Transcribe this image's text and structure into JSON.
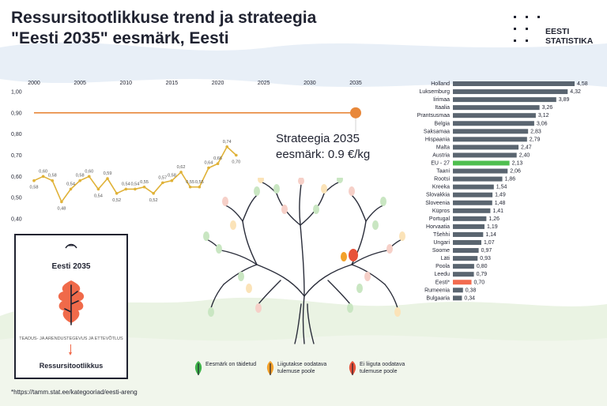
{
  "header": {
    "title_line1": "Ressursitootlikkuse trend ja strateegia",
    "title_line2": "\"Eesti 2035\" eesmärk, Eesti",
    "logo_line1": "EESTI",
    "logo_line2": "STATISTIKA"
  },
  "strategy_note": {
    "line1": "Strateegia 2035",
    "line2": "eesmärk: 0.9 €/kg"
  },
  "card": {
    "title": "Eesti 2035",
    "subtitle": "TEADUS- JA ARENDUSTEGEVUS JA ETTEVÕTLUS",
    "bottom": "Ressursitootlikkus",
    "icon": "oak-leaf-icon"
  },
  "legend": [
    {
      "label": "Eesmärk on täidetud",
      "color": "#3fb34a",
      "icon": "leaf-icon"
    },
    {
      "label": "Liigutakse oodatava tulemuse poole",
      "color": "#f3a12a",
      "icon": "leaf-icon"
    },
    {
      "label": "Ei liiguta oodatava tulemuse poole",
      "color": "#e8533a",
      "icon": "leaf-icon"
    }
  ],
  "footnote": "*https://tamm.stat.ee/kategooriad/eesti-areng",
  "colors": {
    "accent_orange": "#e8883a",
    "line": "#e0b238",
    "bar": "#5a6570",
    "bar_eu": "#4fbf4f",
    "bar_estonia": "#f26b4f",
    "text": "#1f2230"
  },
  "chart_data": [
    {
      "type": "line",
      "x_ticks": [
        "2000",
        "2005",
        "2010",
        "2015",
        "2020",
        "2025",
        "2030",
        "2035"
      ],
      "y_ticks": [
        "1,00",
        "0,90",
        "0,80",
        "0,70",
        "0,60",
        "0,50",
        "0,40"
      ],
      "xlim": [
        2000,
        2035
      ],
      "ylim": [
        0.4,
        1.0
      ],
      "series": [
        {
          "x": [
            2000,
            2001,
            2002,
            2003,
            2004,
            2005,
            2006,
            2007,
            2008,
            2009,
            2010,
            2011,
            2012,
            2013,
            2014,
            2015,
            2016,
            2017,
            2018,
            2019,
            2020,
            2021,
            2022
          ],
          "values": [
            0.58,
            0.6,
            0.58,
            0.48,
            0.54,
            0.58,
            0.6,
            0.54,
            0.59,
            0.52,
            0.54,
            0.54,
            0.55,
            0.52,
            0.57,
            0.58,
            0.62,
            0.55,
            0.55,
            0.64,
            0.66,
            0.74,
            0.7
          ],
          "labels": [
            "0,58",
            "0,60",
            "0,58",
            "0,48",
            "0,54",
            "0,58",
            "0,60",
            "0,54",
            "0,59",
            "0,52",
            "0,54",
            "0,54",
            "0,55",
            "0,52",
            "0,57",
            "0,58",
            "0,62",
            "0,55",
            "0,55",
            "0,64",
            "0,66",
            "0,74",
            "0,70"
          ]
        }
      ],
      "target": {
        "x_start": 2000,
        "x_end": 2035,
        "value": 0.9
      },
      "grid": false
    },
    {
      "type": "bar",
      "orientation": "horizontal",
      "categories": [
        "Holland",
        "Luksemburg",
        "Iirimaa",
        "Itaalia",
        "Prantsusmaa",
        "Belgia",
        "Saksamaa",
        "Hispaania",
        "Malta",
        "Austria",
        "EU - 27",
        "Taani",
        "Rootsi",
        "Kreeka",
        "Slovakkia",
        "Sloveenia",
        "Küpros",
        "Portugal",
        "Horvaatia",
        "Tšehhi",
        "Ungari",
        "Soome",
        "Läti",
        "Poola",
        "Leedu",
        "Eesti*",
        "Rumeenia",
        "Bulgaaria"
      ],
      "values": [
        4.58,
        4.32,
        3.89,
        3.26,
        3.12,
        3.06,
        2.83,
        2.79,
        2.47,
        2.4,
        2.13,
        2.06,
        1.86,
        1.54,
        1.49,
        1.48,
        1.41,
        1.26,
        1.19,
        1.14,
        1.07,
        0.97,
        0.93,
        0.8,
        0.79,
        0.7,
        0.38,
        0.34
      ],
      "labels": [
        "4,58",
        "4,32",
        "3,89",
        "3,26",
        "3,12",
        "3,06",
        "2,83",
        "2,79",
        "2,47",
        "2,40",
        "2,13",
        "2,06",
        "1,86",
        "1,54",
        "1,49",
        "1,48",
        "1,41",
        "1,26",
        "1,19",
        "1,14",
        "1,07",
        "0,97",
        "0,93",
        "0,80",
        "0,79",
        "0,70",
        "0,38",
        "0,34"
      ],
      "highlight": {
        "EU - 27": "#4fbf4f",
        "Eesti*": "#f26b4f"
      },
      "xlim": [
        0,
        4.58
      ]
    }
  ]
}
